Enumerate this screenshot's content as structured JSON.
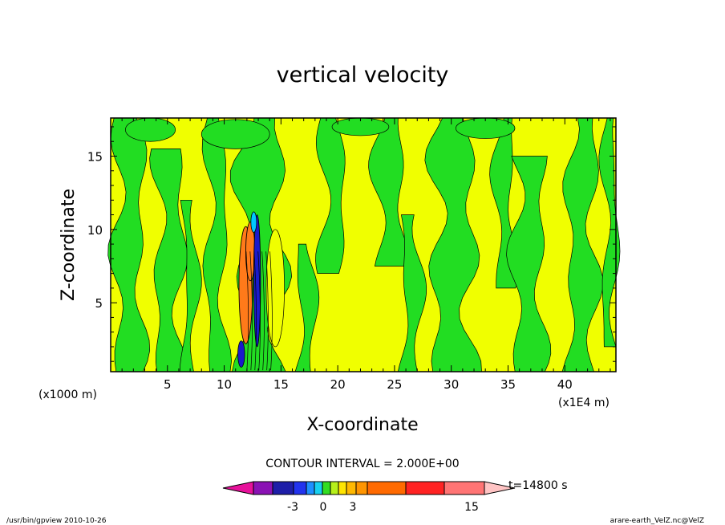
{
  "chart_data": {
    "type": "heatmap",
    "title": "vertical velocity",
    "xlabel": "X-coordinate",
    "ylabel": "Z-coordinate",
    "x_unit_left": "(x1000 m)",
    "x_unit_right": "(x1E4 m)",
    "xlim": [
      0,
      44.5
    ],
    "ylim": [
      0.3,
      17.6
    ],
    "x_ticks": [
      5,
      10,
      15,
      20,
      25,
      30,
      35,
      40
    ],
    "y_ticks": [
      5,
      10,
      15
    ],
    "contour_interval_text": "CONTOUR INTERVAL = 2.000E+00",
    "time_label": "t=14800 s",
    "colorbar_tick_labels": [
      "-3",
      "0",
      "3",
      "15"
    ],
    "colorbar_colors": [
      "#e6119a",
      "#8a12b4",
      "#1e1ea8",
      "#2233ee",
      "#1e90ff",
      "#17d0f0",
      "#33dd22",
      "#b6f01a",
      "#ffe400",
      "#ffb800",
      "#ff9500",
      "#ff6a00",
      "#ff2222",
      "#ff7474",
      "#ffc4c4"
    ],
    "field_colors": {
      "negative_weak": "#22dd22",
      "positive_weak": "#f0ff00",
      "positive_strong": "#ff7a1a",
      "negative_strong": "#1a1acc",
      "negative_mid": "#00c8ff"
    },
    "grid": false
  },
  "footer": {
    "left": "/usr/bin/gpview  2010-10-26",
    "right": "arare-earth_VelZ.nc@VelZ"
  }
}
